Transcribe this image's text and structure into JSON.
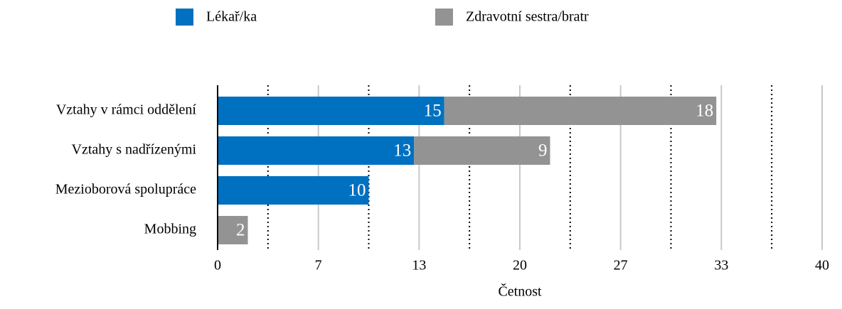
{
  "chart_data": {
    "type": "stacked_barh",
    "categories": [
      "Vztahy v rámci oddělení",
      "Vztahy s nadřízenými",
      "Mezioborová spolupráce",
      "Mobbing"
    ],
    "series": [
      {
        "name": "Lékař/ka",
        "color": "#0070c0",
        "values": [
          15,
          13,
          10,
          null
        ]
      },
      {
        "name": "Zdravotní sestra/bratr",
        "color": "#939393",
        "values": [
          18,
          9,
          null,
          2
        ]
      }
    ],
    "xlabel": "Četnost",
    "xlim": [
      0,
      40
    ],
    "xticks": [
      0,
      {
        "value": 6.667,
        "label": "7"
      },
      {
        "value": 13.333,
        "label": "13"
      },
      20,
      {
        "value": 26.667,
        "label": "27"
      },
      {
        "value": 33.333,
        "label": "33"
      },
      40
    ],
    "xminorticks": [
      3.333,
      10,
      16.667,
      23.333,
      30,
      36.667
    ],
    "grid": true,
    "legend": "top"
  }
}
